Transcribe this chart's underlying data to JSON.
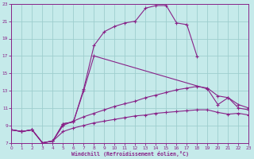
{
  "bg_color": "#c5eaea",
  "grid_color": "#9ecece",
  "line_color": "#882288",
  "xlabel": "Windchill (Refroidissement éolien,°C)",
  "xlim": [
    0,
    23
  ],
  "ylim": [
    7,
    23
  ],
  "ytick_vals": [
    7,
    9,
    11,
    13,
    15,
    17,
    19,
    21,
    23
  ],
  "xtick_vals": [
    0,
    1,
    2,
    3,
    4,
    5,
    6,
    7,
    8,
    9,
    10,
    11,
    12,
    13,
    14,
    15,
    16,
    17,
    18,
    19,
    20,
    21,
    22,
    23
  ],
  "series": [
    {
      "x": [
        0,
        1,
        2,
        3,
        4,
        5,
        6,
        7,
        8,
        9,
        10,
        11,
        12,
        13,
        14,
        15,
        16,
        17,
        18
      ],
      "y": [
        8.5,
        8.3,
        8.5,
        7.0,
        7.2,
        9.2,
        9.4,
        13.2,
        18.2,
        19.8,
        20.4,
        20.8,
        21.0,
        22.5,
        22.8,
        22.8,
        20.8,
        20.6,
        16.9
      ]
    },
    {
      "x": [
        0,
        1,
        2,
        3,
        4,
        5,
        6,
        7,
        8,
        19,
        20,
        21,
        22,
        23
      ],
      "y": [
        8.5,
        8.3,
        8.5,
        7.0,
        7.2,
        9.2,
        9.4,
        13.0,
        17.0,
        13.2,
        11.4,
        12.2,
        11.0,
        10.8
      ]
    },
    {
      "x": [
        0,
        1,
        2,
        3,
        4,
        5,
        6,
        7,
        8,
        9,
        10,
        11,
        12,
        13,
        14,
        15,
        16,
        17,
        18,
        19,
        20,
        21,
        22,
        23
      ],
      "y": [
        8.5,
        8.3,
        8.5,
        7.0,
        7.2,
        9.0,
        9.5,
        10.0,
        10.4,
        10.8,
        11.2,
        11.5,
        11.8,
        12.2,
        12.5,
        12.8,
        13.1,
        13.3,
        13.5,
        13.3,
        12.4,
        12.2,
        11.4,
        11.0
      ]
    },
    {
      "x": [
        0,
        1,
        2,
        3,
        4,
        5,
        6,
        7,
        8,
        9,
        10,
        11,
        12,
        13,
        14,
        15,
        16,
        17,
        18,
        19,
        20,
        21,
        22,
        23
      ],
      "y": [
        8.5,
        8.3,
        8.5,
        7.0,
        7.2,
        8.3,
        8.7,
        9.0,
        9.3,
        9.5,
        9.7,
        9.9,
        10.1,
        10.2,
        10.4,
        10.5,
        10.6,
        10.7,
        10.8,
        10.8,
        10.5,
        10.3,
        10.4,
        10.2
      ]
    }
  ]
}
